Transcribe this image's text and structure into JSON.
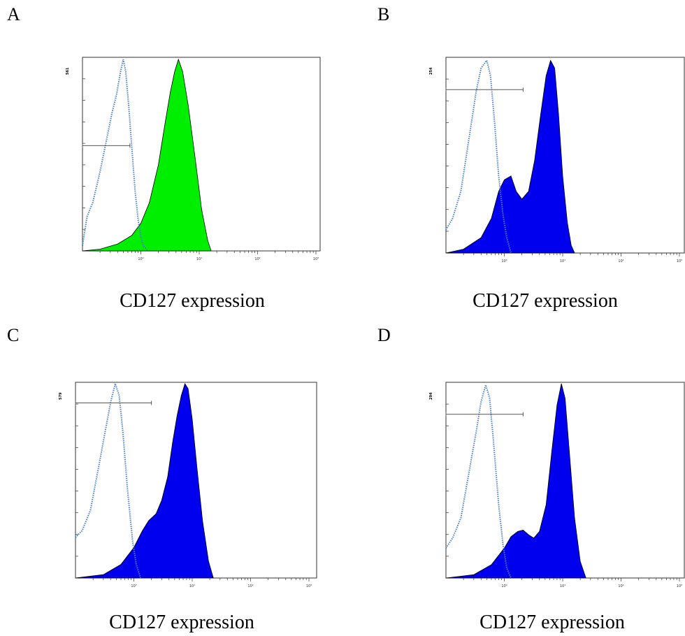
{
  "chart_data": [
    {
      "type": "area",
      "panel_label": "A",
      "xlabel": "CD127 expression",
      "x_scale": "log",
      "xlim": [
        0.1,
        10000
      ],
      "x_ticks": [
        "10⁰",
        "10¹",
        "10²",
        "10³",
        "10⁴"
      ],
      "ylim": [
        0,
        561
      ],
      "y_max_label": "561",
      "gate": {
        "x": [
          0.1,
          0.65
        ],
        "y": 305
      },
      "fill_color": "#00ee00",
      "control_color": "#4a7fd0",
      "series": [
        {
          "role": "isotype control",
          "style": "dotted",
          "x": [
            0.1,
            0.12,
            0.15,
            0.2,
            0.25,
            0.32,
            0.38,
            0.45,
            0.5,
            0.55,
            0.62,
            0.7,
            0.8,
            0.9,
            1.0,
            1.1,
            1.3
          ],
          "y": [
            15,
            100,
            140,
            230,
            310,
            400,
            450,
            520,
            555,
            520,
            420,
            300,
            170,
            90,
            40,
            15,
            0
          ]
        },
        {
          "role": "stained",
          "style": "filled",
          "x": [
            0.1,
            0.2,
            0.4,
            0.7,
            1.0,
            1.4,
            2.0,
            2.6,
            3.2,
            3.8,
            4.4,
            5.2,
            6.5,
            8.5,
            11,
            14,
            16
          ],
          "y": [
            0,
            5,
            20,
            45,
            80,
            140,
            250,
            370,
            460,
            520,
            555,
            520,
            420,
            270,
            120,
            30,
            0
          ]
        }
      ]
    },
    {
      "type": "area",
      "panel_label": "B",
      "xlabel": "CD127 expression",
      "x_scale": "log",
      "xlim": [
        0.1,
        10000
      ],
      "x_ticks": [
        "10⁰",
        "10¹",
        "10²",
        "10³",
        "10⁴"
      ],
      "ylim": [
        0,
        254
      ],
      "y_max_label": "254",
      "gate": {
        "x": [
          0.1,
          2.1
        ],
        "y": 212
      },
      "fill_color": "#0000ee",
      "control_color": "#4a7fd0",
      "series": [
        {
          "role": "isotype control",
          "style": "dotted",
          "x": [
            0.1,
            0.13,
            0.18,
            0.25,
            0.33,
            0.4,
            0.5,
            0.58,
            0.68,
            0.8,
            0.95,
            1.1,
            1.3
          ],
          "y": [
            30,
            45,
            80,
            150,
            210,
            240,
            250,
            230,
            170,
            100,
            50,
            20,
            0
          ]
        },
        {
          "role": "stained",
          "style": "filled",
          "x": [
            0.1,
            0.2,
            0.4,
            0.6,
            0.8,
            1.0,
            1.3,
            1.6,
            2.0,
            2.6,
            3.3,
            4.2,
            5.2,
            6.2,
            7.3,
            8.5,
            10,
            12,
            14,
            16
          ],
          "y": [
            0,
            5,
            20,
            45,
            80,
            95,
            100,
            80,
            70,
            80,
            120,
            180,
            230,
            250,
            240,
            180,
            100,
            40,
            10,
            0
          ]
        }
      ]
    },
    {
      "type": "area",
      "panel_label": "C",
      "xlabel": "CD127 expression",
      "x_scale": "log",
      "xlim": [
        0.1,
        10000
      ],
      "x_ticks": [
        "10⁰",
        "10¹",
        "10²",
        "10³",
        "10⁴"
      ],
      "ylim": [
        0,
        579
      ],
      "y_max_label": "579",
      "gate": {
        "x": [
          0.1,
          2.0
        ],
        "y": 518
      },
      "fill_color": "#0000ee",
      "control_color": "#4a7fd0",
      "series": [
        {
          "role": "isotype control",
          "style": "dotted",
          "x": [
            0.1,
            0.13,
            0.18,
            0.25,
            0.32,
            0.4,
            0.48,
            0.56,
            0.65,
            0.78,
            0.95,
            1.1,
            1.3
          ],
          "y": [
            120,
            140,
            200,
            330,
            430,
            520,
            575,
            540,
            430,
            260,
            110,
            40,
            0
          ]
        },
        {
          "role": "stained",
          "style": "filled",
          "x": [
            0.1,
            0.3,
            0.6,
            1.0,
            1.4,
            1.8,
            2.4,
            3.0,
            3.8,
            4.6,
            5.5,
            6.5,
            7.5,
            8.5,
            10,
            12,
            15,
            19,
            23
          ],
          "y": [
            0,
            10,
            40,
            90,
            140,
            170,
            190,
            230,
            300,
            400,
            480,
            540,
            575,
            560,
            470,
            330,
            170,
            50,
            0
          ]
        }
      ]
    },
    {
      "type": "area",
      "panel_label": "D",
      "xlabel": "CD127 expression",
      "x_scale": "log",
      "xlim": [
        0.1,
        10000
      ],
      "x_ticks": [
        "10⁰",
        "10¹",
        "10²",
        "10³",
        "10⁴"
      ],
      "ylim": [
        0,
        294
      ],
      "y_max_label": "294",
      "gate": {
        "x": [
          0.1,
          2.1
        ],
        "y": 246
      },
      "fill_color": "#0000ee",
      "control_color": "#4a7fd0",
      "series": [
        {
          "role": "isotype control",
          "style": "dotted",
          "x": [
            0.1,
            0.13,
            0.18,
            0.25,
            0.33,
            0.4,
            0.48,
            0.56,
            0.66,
            0.8,
            0.95,
            1.1,
            1.3
          ],
          "y": [
            45,
            60,
            90,
            160,
            220,
            265,
            290,
            270,
            200,
            110,
            50,
            15,
            0
          ]
        },
        {
          "role": "stained",
          "style": "filled",
          "x": [
            0.1,
            0.3,
            0.6,
            1.0,
            1.3,
            1.7,
            2.1,
            2.6,
            3.2,
            4.0,
            5.2,
            6.5,
            8.0,
            9.5,
            11,
            13,
            16,
            20,
            25
          ],
          "y": [
            0,
            5,
            20,
            45,
            62,
            70,
            72,
            65,
            60,
            70,
            110,
            190,
            260,
            292,
            270,
            190,
            90,
            25,
            0
          ]
        }
      ]
    }
  ]
}
